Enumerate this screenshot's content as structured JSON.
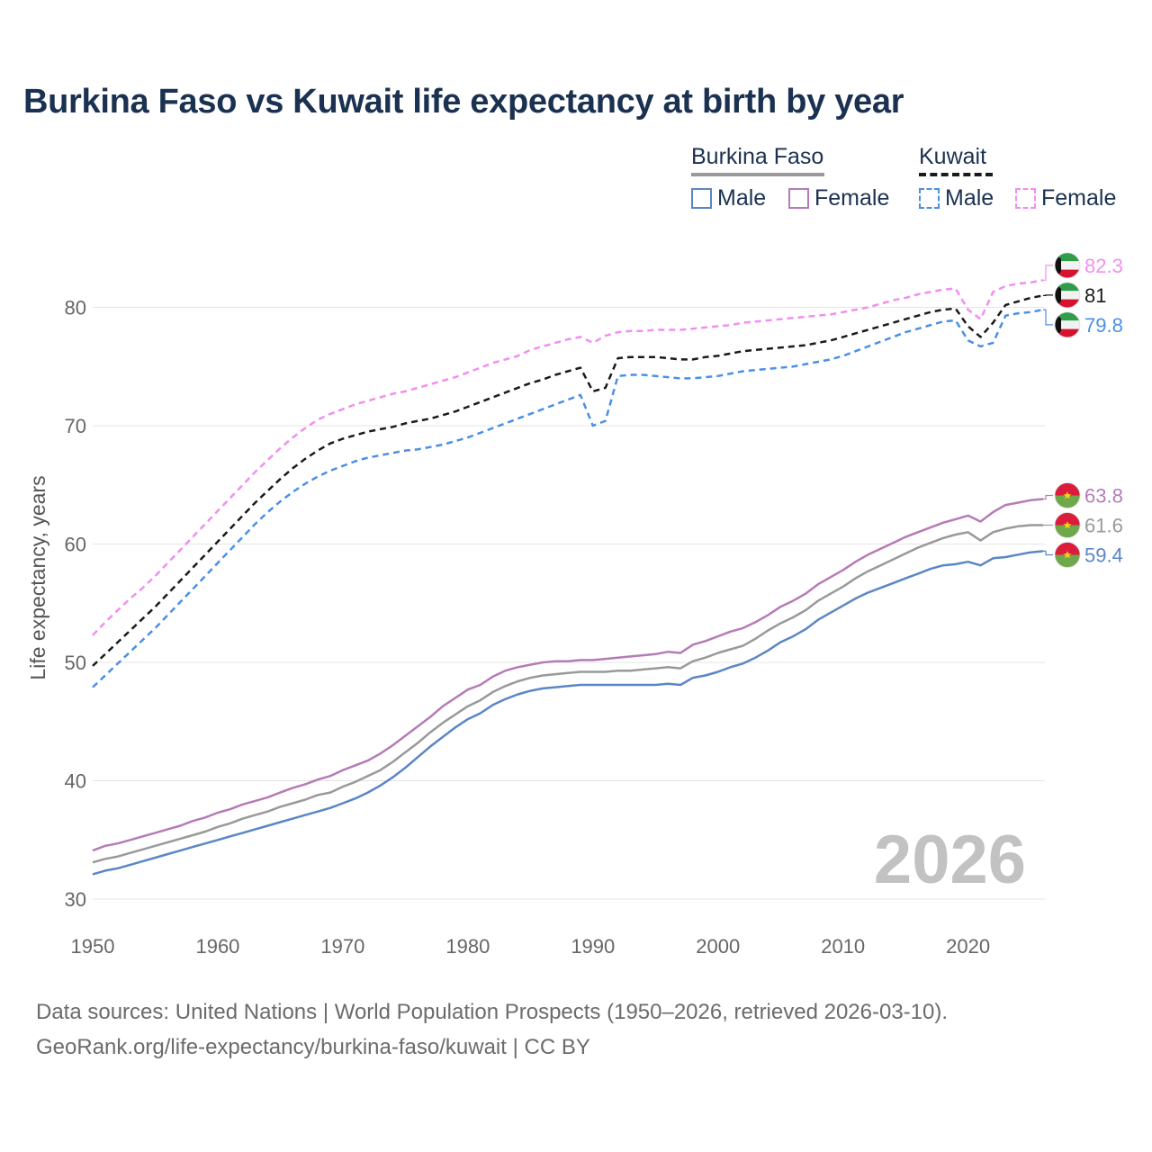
{
  "title": "Burkina Faso vs Kuwait life expectancy at birth by year",
  "legend": {
    "groups": [
      {
        "name": "Burkina Faso",
        "line_color": "#999999",
        "line_style": "solid",
        "items": [
          {
            "label": "Male",
            "color": "#5b86c5",
            "style": "solid"
          },
          {
            "label": "Female",
            "color": "#b57bb6",
            "style": "solid"
          }
        ]
      },
      {
        "name": "Kuwait",
        "line_color": "#1a1a1a",
        "line_style": "dashed",
        "items": [
          {
            "label": "Male",
            "color": "#4a8fe7",
            "style": "dashed"
          },
          {
            "label": "Female",
            "color": "#f28ef0",
            "style": "dashed"
          }
        ]
      }
    ]
  },
  "year_label": "2026",
  "source": {
    "line1": "Data sources: United Nations | World Population Prospects (1950–2026, retrieved 2026-03-10).",
    "line2": "GeoRank.org/life-expectancy/burkina-faso/kuwait | CC BY"
  },
  "chart_data": {
    "type": "line",
    "title": "Burkina Faso vs Kuwait life expectancy at birth by year",
    "xlabel": "",
    "ylabel": "Life expectancy, years",
    "xlim": [
      1950,
      2026
    ],
    "ylim": [
      30,
      85
    ],
    "x_ticks": [
      "1950",
      "1960",
      "1970",
      "1980",
      "1990",
      "2000",
      "2010",
      "2020"
    ],
    "y_ticks": [
      "30",
      "40",
      "50",
      "60",
      "70",
      "80"
    ],
    "grid": true,
    "x": [
      1950,
      1951,
      1952,
      1953,
      1954,
      1955,
      1956,
      1957,
      1958,
      1959,
      1960,
      1961,
      1962,
      1963,
      1964,
      1965,
      1966,
      1967,
      1968,
      1969,
      1970,
      1971,
      1972,
      1973,
      1974,
      1975,
      1976,
      1977,
      1978,
      1979,
      1980,
      1981,
      1982,
      1983,
      1984,
      1985,
      1986,
      1987,
      1988,
      1989,
      1990,
      1991,
      1992,
      1993,
      1994,
      1995,
      1996,
      1997,
      1998,
      1999,
      2000,
      2001,
      2002,
      2003,
      2004,
      2005,
      2006,
      2007,
      2008,
      2009,
      2010,
      2011,
      2012,
      2013,
      2014,
      2015,
      2016,
      2017,
      2018,
      2019,
      2020,
      2021,
      2022,
      2023,
      2024,
      2025,
      2026
    ],
    "series": [
      {
        "name": "Kuwait Female",
        "country": "Kuwait",
        "color": "#f28ef0",
        "dash": true,
        "end_label": "82.3",
        "flag": "kuwait",
        "values": [
          52.3,
          53.4,
          54.4,
          55.4,
          56.3,
          57.3,
          58.4,
          59.5,
          60.6,
          61.7,
          62.8,
          63.9,
          65.0,
          66.1,
          67.1,
          68.1,
          69.0,
          69.8,
          70.5,
          71.0,
          71.4,
          71.8,
          72.1,
          72.4,
          72.7,
          72.9,
          73.2,
          73.5,
          73.8,
          74.1,
          74.5,
          74.9,
          75.3,
          75.6,
          75.9,
          76.4,
          76.7,
          77.0,
          77.3,
          77.5,
          77.0,
          77.6,
          77.9,
          78.0,
          78.0,
          78.1,
          78.1,
          78.1,
          78.2,
          78.3,
          78.4,
          78.5,
          78.7,
          78.8,
          78.9,
          79.0,
          79.1,
          79.2,
          79.3,
          79.4,
          79.6,
          79.8,
          80.0,
          80.3,
          80.6,
          80.8,
          81.1,
          81.3,
          81.5,
          81.6,
          79.8,
          79.0,
          81.3,
          81.8,
          82.0,
          82.1,
          82.3
        ]
      },
      {
        "name": "Kuwait",
        "country": "Kuwait",
        "color": "#1a1a1a",
        "dash": true,
        "end_label": "81",
        "flag": "kuwait",
        "values": [
          49.7,
          50.7,
          51.7,
          52.7,
          53.7,
          54.7,
          55.8,
          56.9,
          58.0,
          59.1,
          60.2,
          61.3,
          62.4,
          63.5,
          64.5,
          65.5,
          66.4,
          67.2,
          67.9,
          68.5,
          68.9,
          69.2,
          69.5,
          69.7,
          69.9,
          70.2,
          70.4,
          70.6,
          70.9,
          71.2,
          71.6,
          72.0,
          72.4,
          72.8,
          73.2,
          73.6,
          73.9,
          74.3,
          74.6,
          74.9,
          72.9,
          73.2,
          75.7,
          75.8,
          75.8,
          75.8,
          75.7,
          75.6,
          75.6,
          75.8,
          75.9,
          76.1,
          76.3,
          76.4,
          76.5,
          76.6,
          76.7,
          76.8,
          77.0,
          77.2,
          77.5,
          77.8,
          78.1,
          78.4,
          78.7,
          79.0,
          79.3,
          79.6,
          79.8,
          79.9,
          78.4,
          77.5,
          78.7,
          80.2,
          80.5,
          80.8,
          81.0
        ]
      },
      {
        "name": "Kuwait Male",
        "country": "Kuwait",
        "color": "#4a8fe7",
        "dash": true,
        "end_label": "79.8",
        "flag": "kuwait",
        "values": [
          47.9,
          48.9,
          49.9,
          50.9,
          51.9,
          52.9,
          54.0,
          55.1,
          56.2,
          57.3,
          58.4,
          59.5,
          60.6,
          61.7,
          62.7,
          63.6,
          64.4,
          65.1,
          65.7,
          66.2,
          66.6,
          67.0,
          67.3,
          67.5,
          67.7,
          67.9,
          68.0,
          68.2,
          68.4,
          68.7,
          69.0,
          69.4,
          69.8,
          70.2,
          70.6,
          71.0,
          71.4,
          71.8,
          72.2,
          72.6,
          70.0,
          70.4,
          74.2,
          74.3,
          74.3,
          74.2,
          74.1,
          74.0,
          74.0,
          74.1,
          74.2,
          74.4,
          74.6,
          74.7,
          74.8,
          74.9,
          75.0,
          75.2,
          75.4,
          75.6,
          75.9,
          76.3,
          76.7,
          77.1,
          77.5,
          77.9,
          78.2,
          78.5,
          78.8,
          78.9,
          77.2,
          76.7,
          77.0,
          79.3,
          79.5,
          79.6,
          79.8
        ]
      },
      {
        "name": "Burkina Faso Female",
        "country": "Burkina Faso",
        "color": "#b57bb6",
        "dash": false,
        "end_label": "63.8",
        "flag": "burkina",
        "values": [
          34.1,
          34.5,
          34.7,
          35.0,
          35.3,
          35.6,
          35.9,
          36.2,
          36.6,
          36.9,
          37.3,
          37.6,
          38.0,
          38.3,
          38.6,
          39.0,
          39.4,
          39.7,
          40.1,
          40.4,
          40.9,
          41.3,
          41.7,
          42.3,
          43.0,
          43.8,
          44.6,
          45.4,
          46.3,
          47.0,
          47.7,
          48.1,
          48.8,
          49.3,
          49.6,
          49.8,
          50.0,
          50.1,
          50.1,
          50.2,
          50.2,
          50.3,
          50.4,
          50.5,
          50.6,
          50.7,
          50.9,
          50.8,
          51.5,
          51.8,
          52.2,
          52.6,
          52.9,
          53.4,
          54.0,
          54.7,
          55.2,
          55.8,
          56.6,
          57.2,
          57.8,
          58.5,
          59.1,
          59.6,
          60.1,
          60.6,
          61.0,
          61.4,
          61.8,
          62.1,
          62.4,
          61.9,
          62.7,
          63.3,
          63.5,
          63.7,
          63.8
        ]
      },
      {
        "name": "Burkina Faso",
        "country": "Burkina Faso",
        "color": "#999999",
        "dash": false,
        "end_label": "61.6",
        "flag": "burkina",
        "values": [
          33.1,
          33.4,
          33.6,
          33.9,
          34.2,
          34.5,
          34.8,
          35.1,
          35.4,
          35.7,
          36.1,
          36.4,
          36.8,
          37.1,
          37.4,
          37.8,
          38.1,
          38.4,
          38.8,
          39.0,
          39.5,
          39.9,
          40.4,
          40.9,
          41.6,
          42.4,
          43.2,
          44.1,
          44.9,
          45.6,
          46.3,
          46.8,
          47.5,
          48.0,
          48.4,
          48.7,
          48.9,
          49.0,
          49.1,
          49.2,
          49.2,
          49.2,
          49.3,
          49.3,
          49.4,
          49.5,
          49.6,
          49.5,
          50.1,
          50.4,
          50.8,
          51.1,
          51.4,
          52.0,
          52.7,
          53.3,
          53.8,
          54.4,
          55.2,
          55.8,
          56.4,
          57.1,
          57.7,
          58.2,
          58.7,
          59.2,
          59.7,
          60.1,
          60.5,
          60.8,
          61.0,
          60.3,
          61.0,
          61.3,
          61.5,
          61.6,
          61.6
        ]
      },
      {
        "name": "Burkina Faso Male",
        "country": "Burkina Faso",
        "color": "#5b86c5",
        "dash": false,
        "end_label": "59.4",
        "flag": "burkina",
        "values": [
          32.1,
          32.4,
          32.6,
          32.9,
          33.2,
          33.5,
          33.8,
          34.1,
          34.4,
          34.7,
          35.0,
          35.3,
          35.6,
          35.9,
          36.2,
          36.5,
          36.8,
          37.1,
          37.4,
          37.7,
          38.1,
          38.5,
          39.0,
          39.6,
          40.3,
          41.1,
          42.0,
          42.9,
          43.7,
          44.5,
          45.2,
          45.7,
          46.4,
          46.9,
          47.3,
          47.6,
          47.8,
          47.9,
          48.0,
          48.1,
          48.1,
          48.1,
          48.1,
          48.1,
          48.1,
          48.1,
          48.2,
          48.1,
          48.7,
          48.9,
          49.2,
          49.6,
          49.9,
          50.4,
          51.0,
          51.7,
          52.2,
          52.8,
          53.6,
          54.2,
          54.8,
          55.4,
          55.9,
          56.3,
          56.7,
          57.1,
          57.5,
          57.9,
          58.2,
          58.3,
          58.5,
          58.2,
          58.8,
          58.9,
          59.1,
          59.3,
          59.4
        ]
      }
    ]
  }
}
